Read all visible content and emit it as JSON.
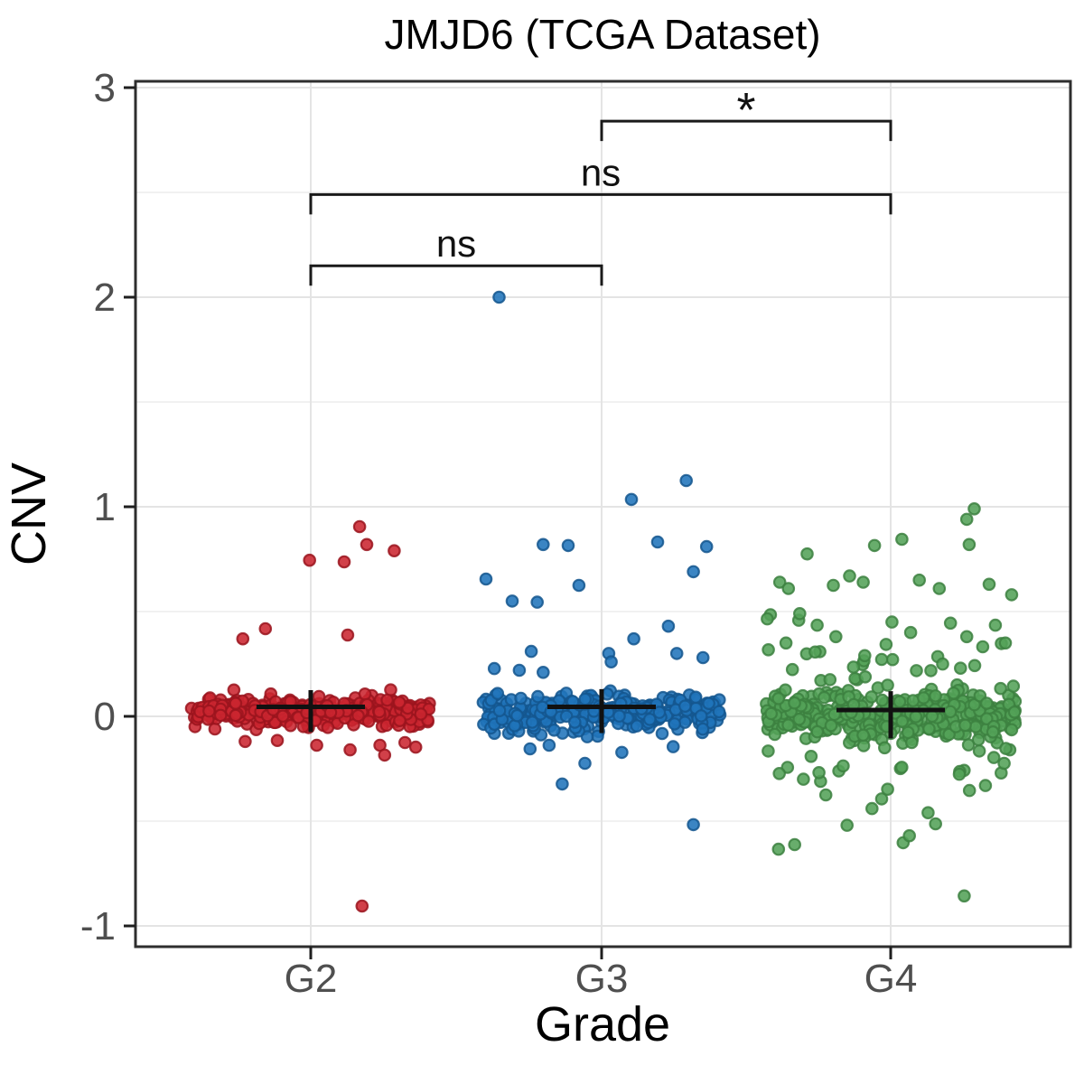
{
  "figure": {
    "background": "#FFFFFF"
  },
  "chart_data": {
    "type": "scatter",
    "subtype": "jittered strip plot with mean error bars and significance brackets",
    "title": "JMJD6 (TCGA Dataset)",
    "xlabel": "Grade",
    "ylabel": "CNV",
    "categories": [
      "G2",
      "G3",
      "G4"
    ],
    "y_tick_labels": [
      "3",
      "2",
      "1",
      "0",
      "-1"
    ],
    "y_tick_values": [
      3,
      2,
      1,
      0,
      -1
    ],
    "ylim": [
      -1.1,
      3.03
    ],
    "grid": {
      "major_values": [
        3,
        2,
        1,
        0,
        -1
      ],
      "minor_values": [
        2.5,
        1.5,
        0.5,
        -0.5
      ],
      "major_color": "#E4E4E4",
      "minor_color": "#F1F1F1",
      "vertical_at_categories": true
    },
    "legend": "none",
    "panel_border_color": "#2E2E2E",
    "tick_color": "#1F1F1F",
    "groups": [
      {
        "name": "G2",
        "fill": "#CB2630",
        "edge": "#9A141D",
        "summary": {
          "mean": 0.045,
          "upper": 0.125,
          "lower": -0.075
        },
        "core": {
          "n": 295,
          "mean": 0.022,
          "sd": 0.035,
          "clip": [
            -0.08,
            0.135
          ]
        },
        "outliers": [
          [
            0.41,
            0.905
          ],
          [
            0.47,
            0.82
          ],
          [
            0.7,
            0.79
          ],
          [
            -0.01,
            0.745
          ],
          [
            0.28,
            0.737
          ],
          [
            -0.38,
            0.418
          ],
          [
            0.31,
            0.388
          ],
          [
            -0.57,
            0.37
          ],
          [
            0.58,
            -0.138
          ],
          [
            0.79,
            -0.125
          ],
          [
            0.88,
            -0.147
          ],
          [
            0.05,
            -0.138
          ],
          [
            -0.28,
            -0.115
          ],
          [
            0.33,
            -0.16
          ],
          [
            -0.55,
            -0.12
          ],
          [
            0.62,
            -0.185
          ],
          [
            0.43,
            -0.905
          ]
        ]
      },
      {
        "name": "G3",
        "fill": "#2074BB",
        "edge": "#14568E",
        "summary": {
          "mean": 0.045,
          "upper": 0.13,
          "lower": -0.08
        },
        "core": {
          "n": 310,
          "mean": 0.015,
          "sd": 0.042,
          "clip": [
            -0.1,
            0.145
          ]
        },
        "outliers": [
          [
            -0.86,
            2.0
          ],
          [
            0.71,
            1.125
          ],
          [
            0.25,
            1.035
          ],
          [
            -0.49,
            0.82
          ],
          [
            -0.28,
            0.815
          ],
          [
            0.47,
            0.832
          ],
          [
            0.88,
            0.81
          ],
          [
            0.77,
            0.69
          ],
          [
            -0.97,
            0.655
          ],
          [
            -0.19,
            0.625
          ],
          [
            -0.75,
            0.55
          ],
          [
            -0.54,
            0.545
          ],
          [
            0.56,
            0.43
          ],
          [
            0.27,
            0.37
          ],
          [
            0.06,
            0.3
          ],
          [
            0.08,
            0.26
          ],
          [
            -0.59,
            0.31
          ],
          [
            0.63,
            0.3
          ],
          [
            0.85,
            0.28
          ],
          [
            -0.9,
            0.228
          ],
          [
            -0.69,
            0.22
          ],
          [
            -0.49,
            0.21
          ],
          [
            -0.44,
            -0.138
          ],
          [
            0.17,
            -0.172
          ],
          [
            -0.14,
            -0.224
          ],
          [
            -0.33,
            -0.323
          ],
          [
            -0.6,
            -0.155
          ],
          [
            0.6,
            -0.145
          ],
          [
            0.77,
            -0.517
          ]
        ]
      },
      {
        "name": "G4",
        "fill": "#53A258",
        "edge": "#3C8040",
        "summary": {
          "mean": 0.03,
          "upper": 0.12,
          "lower": -0.105
        },
        "core": {
          "n": 340,
          "mean": 0.005,
          "sd": 0.05,
          "clip": [
            -0.13,
            0.16
          ]
        },
        "extra": {
          "n": 110,
          "mean": 0.0,
          "sd": 0.21,
          "clip": [
            -0.42,
            0.52
          ]
        },
        "outliers": [
          [
            0.67,
            0.99
          ],
          [
            0.61,
            0.94
          ],
          [
            0.63,
            0.82
          ],
          [
            0.09,
            0.845
          ],
          [
            -0.13,
            0.815
          ],
          [
            -0.67,
            0.775
          ],
          [
            -0.89,
            0.64
          ],
          [
            -0.82,
            0.61
          ],
          [
            -0.46,
            0.625
          ],
          [
            -0.33,
            0.67
          ],
          [
            -0.22,
            0.64
          ],
          [
            0.23,
            0.65
          ],
          [
            0.39,
            0.61
          ],
          [
            0.79,
            0.63
          ],
          [
            0.97,
            0.58
          ],
          [
            -0.99,
            0.465
          ],
          [
            -0.73,
            0.49
          ],
          [
            -0.59,
            0.435
          ],
          [
            -0.84,
            0.35
          ],
          [
            -0.44,
            0.38
          ],
          [
            0.01,
            0.45
          ],
          [
            0.16,
            0.4
          ],
          [
            0.48,
            0.445
          ],
          [
            0.61,
            0.38
          ],
          [
            0.84,
            0.435
          ],
          [
            0.92,
            0.35
          ],
          [
            0.1,
            -0.603
          ],
          [
            0.59,
            -0.857
          ],
          [
            -0.9,
            -0.634
          ],
          [
            -0.77,
            -0.612
          ],
          [
            0.15,
            -0.57
          ],
          [
            0.36,
            -0.513
          ],
          [
            -0.15,
            -0.44
          ],
          [
            -0.52,
            -0.375
          ],
          [
            -0.7,
            -0.3
          ],
          [
            0.76,
            -0.33
          ],
          [
            0.91,
            -0.224
          ],
          [
            0.3,
            -0.46
          ],
          [
            -0.35,
            -0.52
          ]
        ]
      }
    ],
    "significance": [
      {
        "pair": [
          "G2",
          "G3"
        ],
        "from": 0,
        "to": 1,
        "label": "ns",
        "height": 2.15
      },
      {
        "pair": [
          "G2",
          "G4"
        ],
        "from": 0,
        "to": 2,
        "label": "ns",
        "height": 2.49
      },
      {
        "pair": [
          "G3",
          "G4"
        ],
        "from": 1,
        "to": 2,
        "label": "*",
        "height": 2.84
      }
    ]
  }
}
